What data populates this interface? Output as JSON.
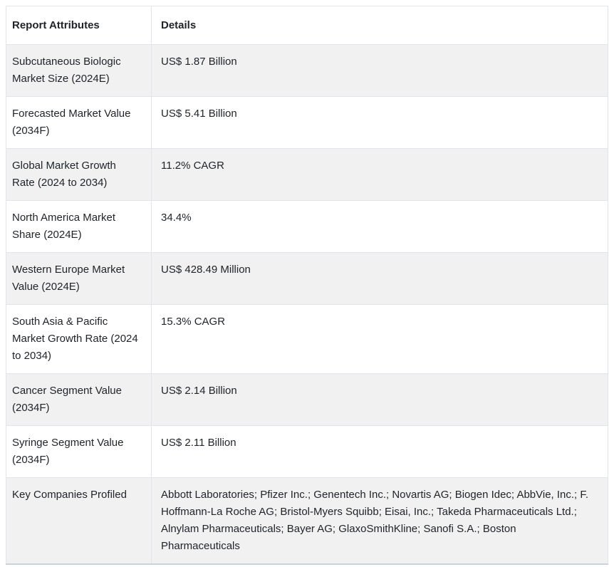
{
  "page": {
    "background_color": "#ffffff"
  },
  "table": {
    "colors": {
      "stripe_row_background": "#f1f1f2",
      "plain_row_background": "#ffffff",
      "cell_border": "#e1e4e8",
      "outer_border": "#dee2e6",
      "bottom_border": "#ccd0d8",
      "text": "#212529"
    },
    "columns": [
      "Report Attributes",
      "Details"
    ],
    "rows": [
      {
        "attribute": "Subcutaneous Biologic Market Size (2024E)",
        "detail": "US$ 1.87 Billion"
      },
      {
        "attribute": "Forecasted Market Value (2034F)",
        "detail": "US$ 5.41 Billion"
      },
      {
        "attribute": "Global Market Growth Rate (2024 to 2034)",
        "detail": "11.2% CAGR"
      },
      {
        "attribute": "North America Market Share (2024E)",
        "detail": "34.4%"
      },
      {
        "attribute": "Western Europe Market Value (2024E)",
        "detail": "US$ 428.49 Million"
      },
      {
        "attribute": "South Asia & Pacific Market Growth Rate (2024 to 2034)",
        "detail": "15.3% CAGR"
      },
      {
        "attribute": "Cancer Segment Value (2034F)",
        "detail": "US$ 2.14 Billion"
      },
      {
        "attribute": "Syringe Segment Value (2034F)",
        "detail": "US$ 2.11 Billion"
      },
      {
        "attribute": "Key Companies Profiled",
        "detail": "Abbott Laboratories; Pfizer Inc.; Genentech Inc.; Novartis AG; Biogen Idec; AbbVie, Inc.; F. Hoffmann-La Roche AG; Bristol-Myers Squibb; Eisai, Inc.; Takeda Pharmaceuticals Ltd.; Alnylam Pharmaceuticals; Bayer AG; GlaxoSmithKline; Sanofi S.A.; Boston Pharmaceuticals"
      }
    ]
  }
}
